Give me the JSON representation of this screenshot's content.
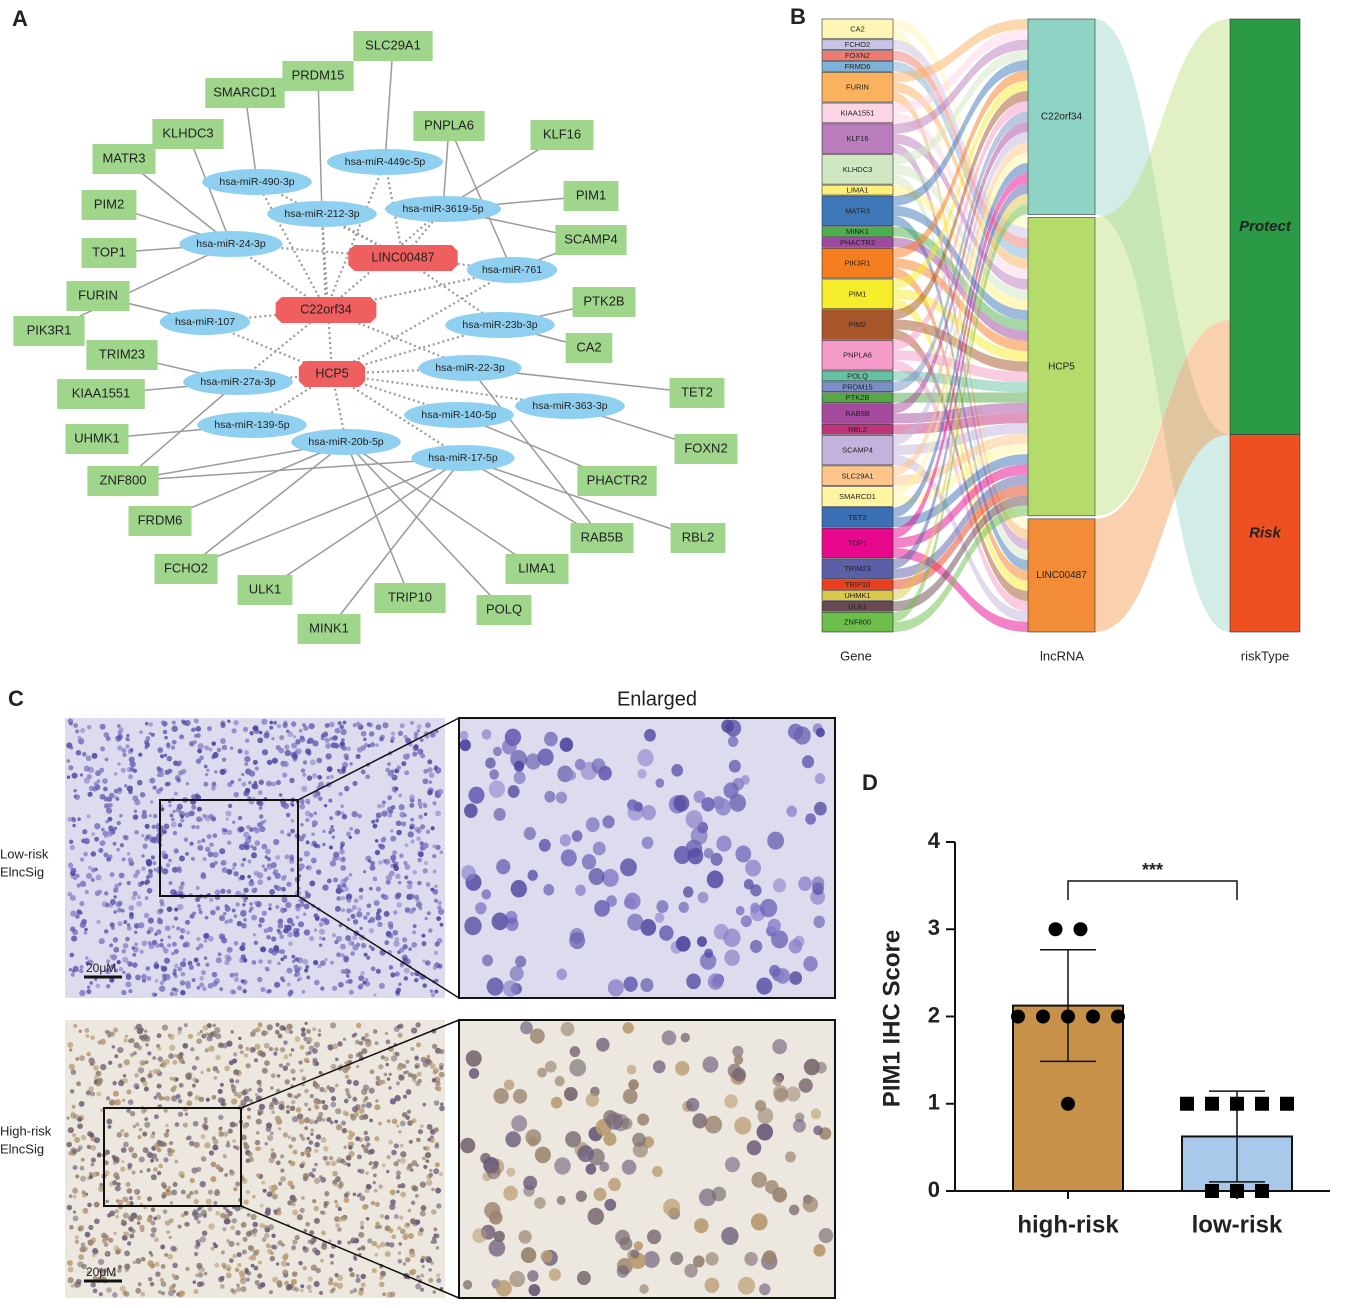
{
  "panel_labels": [
    "A",
    "B",
    "C",
    "D"
  ],
  "network": {
    "colors": {
      "gene": "#9fd68c",
      "mirna": "#8fd0f0",
      "lncrna": "#ef5f5f"
    },
    "lncrnas": [
      "LINC00487",
      "C22orf34",
      "HCP5"
    ],
    "mirnas": [
      "hsa-miR-449c-5p",
      "hsa-miR-490-3p",
      "hsa-miR-212-3p",
      "hsa-miR-3619-5p",
      "hsa-miR-24-3p",
      "hsa-miR-761",
      "hsa-miR-107",
      "hsa-miR-23b-3p",
      "hsa-miR-22-3p",
      "hsa-miR-27a-3p",
      "hsa-miR-363-3p",
      "hsa-miR-140-5p",
      "hsa-miR-139-5p",
      "hsa-miR-20b-5p",
      "hsa-miR-17-5p"
    ],
    "genes": [
      "SLC29A1",
      "PRDM15",
      "SMARCD1",
      "KLHDC3",
      "PNPLA6",
      "KLF16",
      "MATR3",
      "PIM1",
      "PIM2",
      "SCAMP4",
      "TOP1",
      "FURIN",
      "PTK2B",
      "PIK3R1",
      "TRIM23",
      "CA2",
      "KIAA1551",
      "TET2",
      "UHMK1",
      "FOXN2",
      "ZNF800",
      "PHACTR2",
      "FRDM6",
      "RAB5B",
      "RBL2",
      "FCHO2",
      "LIMA1",
      "ULK1",
      "TRIP10",
      "POLQ",
      "MINK1"
    ],
    "lnc_mirna_edges": [
      [
        0,
        0
      ],
      [
        0,
        1
      ],
      [
        0,
        2
      ],
      [
        0,
        3
      ],
      [
        0,
        4
      ],
      [
        0,
        5
      ],
      [
        0,
        7
      ],
      [
        1,
        0
      ],
      [
        1,
        1
      ],
      [
        1,
        2
      ],
      [
        1,
        3
      ],
      [
        1,
        4
      ],
      [
        1,
        5
      ],
      [
        1,
        6
      ],
      [
        1,
        9
      ],
      [
        1,
        8
      ],
      [
        2,
        2
      ],
      [
        2,
        6
      ],
      [
        2,
        9
      ],
      [
        2,
        12
      ],
      [
        2,
        13
      ],
      [
        2,
        11
      ],
      [
        2,
        14
      ],
      [
        2,
        8
      ],
      [
        2,
        10
      ],
      [
        2,
        7
      ],
      [
        2,
        5
      ]
    ],
    "mirna_gene_edges": [
      [
        0,
        0
      ],
      [
        2,
        1
      ],
      [
        1,
        2
      ],
      [
        4,
        3
      ],
      [
        4,
        6
      ],
      [
        4,
        8
      ],
      [
        4,
        10
      ],
      [
        6,
        11
      ],
      [
        4,
        13
      ],
      [
        3,
        4
      ],
      [
        5,
        4
      ],
      [
        3,
        5
      ],
      [
        3,
        7
      ],
      [
        3,
        9
      ],
      [
        5,
        9
      ],
      [
        7,
        12
      ],
      [
        7,
        15
      ],
      [
        9,
        14
      ],
      [
        9,
        16
      ],
      [
        8,
        17
      ],
      [
        12,
        18
      ],
      [
        13,
        20
      ],
      [
        14,
        20
      ],
      [
        10,
        19
      ],
      [
        11,
        21
      ],
      [
        8,
        23
      ],
      [
        14,
        23
      ],
      [
        14,
        24
      ],
      [
        13,
        22
      ],
      [
        13,
        25
      ],
      [
        14,
        25
      ],
      [
        13,
        26
      ],
      [
        14,
        27
      ],
      [
        13,
        28
      ],
      [
        13,
        29
      ],
      [
        14,
        30
      ],
      [
        9,
        20
      ]
    ]
  },
  "sankey": {
    "axis_labels": [
      "Gene",
      "lncRNA",
      "riskType"
    ],
    "genes": [
      {
        "name": "CA2",
        "color": "#fdf6b5",
        "links": [
          0,
          1,
          1
        ]
      },
      {
        "name": "FCHO2",
        "color": "#c9c4e6",
        "links": [
          0,
          1,
          0
        ]
      },
      {
        "name": "FOXN2",
        "color": "#f07b72",
        "links": [
          0,
          1,
          0
        ]
      },
      {
        "name": "FRMD6",
        "color": "#7fb2d8",
        "links": [
          0,
          1,
          0
        ]
      },
      {
        "name": "FURIN",
        "color": "#fbb25f",
        "links": [
          1,
          1,
          1
        ]
      },
      {
        "name": "KIAA1551",
        "color": "#fcd4e4",
        "links": [
          1,
          1,
          0
        ]
      },
      {
        "name": "KLF16",
        "color": "#b97cbc",
        "links": [
          1,
          1,
          1
        ]
      },
      {
        "name": "KLHDC3",
        "color": "#cfe8c2",
        "links": [
          1,
          1,
          1
        ]
      },
      {
        "name": "LIMA1",
        "color": "#fff07a",
        "links": [
          0,
          1,
          0
        ]
      },
      {
        "name": "MATR3",
        "color": "#3f78b9",
        "links": [
          1,
          1,
          1
        ]
      },
      {
        "name": "MINK1",
        "color": "#4daf4a",
        "links": [
          0,
          1,
          0
        ]
      },
      {
        "name": "PHACTR2",
        "color": "#9d4aa0",
        "links": [
          0,
          1,
          0
        ]
      },
      {
        "name": "PIK3R1",
        "color": "#f57e20",
        "links": [
          1,
          1,
          1
        ]
      },
      {
        "name": "PIM1",
        "color": "#f5ec2c",
        "links": [
          1,
          1,
          1
        ]
      },
      {
        "name": "PIM2",
        "color": "#a65628",
        "links": [
          1,
          1,
          1
        ]
      },
      {
        "name": "PNPLA6",
        "color": "#f49ac9",
        "links": [
          1,
          1,
          1
        ]
      },
      {
        "name": "POLQ",
        "color": "#66c2a5",
        "links": [
          0,
          1,
          0
        ]
      },
      {
        "name": "PRDM15",
        "color": "#7a8fc6",
        "links": [
          1,
          0,
          0
        ]
      },
      {
        "name": "PTK2B",
        "color": "#56a847",
        "links": [
          0,
          1,
          0
        ]
      },
      {
        "name": "RAB5B",
        "color": "#a64a9e",
        "links": [
          1,
          1,
          0
        ]
      },
      {
        "name": "RBL2",
        "color": "#c2347a",
        "links": [
          0,
          1,
          0
        ]
      },
      {
        "name": "SCAMP4",
        "color": "#c3b3dc",
        "links": [
          1,
          1,
          1
        ]
      },
      {
        "name": "SLC29A1",
        "color": "#fdc58a",
        "links": [
          1,
          1,
          0
        ]
      },
      {
        "name": "SMARCD1",
        "color": "#fff5a0",
        "links": [
          1,
          1,
          0
        ]
      },
      {
        "name": "TET2",
        "color": "#3b6fb6",
        "links": [
          1,
          1,
          0
        ]
      },
      {
        "name": "TOP1",
        "color": "#e7088e",
        "links": [
          1,
          1,
          1
        ]
      },
      {
        "name": "TRIM23",
        "color": "#5a5fa8",
        "links": [
          1,
          1,
          0
        ]
      },
      {
        "name": "TRIP10",
        "color": "#e8401e",
        "links": [
          0,
          1,
          0
        ]
      },
      {
        "name": "UHMK1",
        "color": "#d9c84a",
        "links": [
          1,
          0,
          0
        ]
      },
      {
        "name": "ULK1",
        "color": "#6a4a52",
        "links": [
          0,
          1,
          0
        ]
      },
      {
        "name": "ZNF800",
        "color": "#6cbf4a",
        "links": [
          1,
          1,
          0
        ]
      }
    ],
    "lncrnas": [
      {
        "name": "C22orf34",
        "color": "#8fd3c4",
        "target": 1
      },
      {
        "name": "HCP5",
        "color": "#b5dc6b",
        "target": 0
      },
      {
        "name": "LINC00487",
        "color": "#f28c36",
        "target": 0
      }
    ],
    "risk_types": [
      {
        "name": "Protect",
        "color": "#2a9a46"
      },
      {
        "name": "Risk",
        "color": "#ee5022"
      }
    ]
  },
  "micrographs": {
    "title": "Enlarged",
    "rows": [
      {
        "label": [
          "Low-risk",
          "ElncSig"
        ],
        "scale_bar": "20μM"
      },
      {
        "label": [
          "High-risk",
          "ElncSig"
        ],
        "scale_bar": "20μM"
      }
    ]
  },
  "chart_data": {
    "type": "bar",
    "y_label": "PIM1 IHC Score",
    "categories": [
      "high-risk",
      "low-risk"
    ],
    "values": [
      2.125,
      0.625
    ],
    "errors": [
      0.64,
      0.52
    ],
    "colors": [
      "#c8914a",
      "#a9c9ea"
    ],
    "points": [
      [
        3,
        3,
        2,
        2,
        2,
        2,
        2,
        1
      ],
      [
        1,
        1,
        1,
        1,
        1,
        0,
        0,
        0
      ]
    ],
    "point_markers": [
      "circle",
      "square"
    ],
    "ylim": [
      0,
      4
    ],
    "yticks": [
      0,
      1,
      2,
      3,
      4
    ],
    "annotation": "***"
  }
}
